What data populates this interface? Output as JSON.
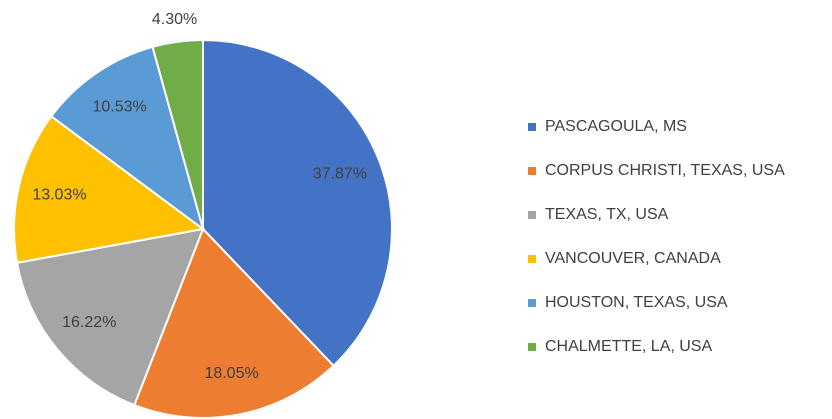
{
  "chart_data": {
    "type": "pie",
    "categories": [
      "PASCAGOULA, MS",
      "CORPUS CHRISTI, TEXAS, USA",
      "TEXAS, TX, USA",
      "VANCOUVER, CANADA",
      "HOUSTON, TEXAS, USA",
      "CHALMETTE, LA, USA"
    ],
    "values": [
      37.87,
      18.05,
      16.22,
      13.03,
      10.53,
      4.3
    ],
    "value_labels": [
      "37.87%",
      "18.05%",
      "16.22%",
      "13.03%",
      "10.53%",
      "4.30%"
    ],
    "colors": [
      "#4472c4",
      "#ed7d31",
      "#a5a5a5",
      "#ffc000",
      "#5b9bd5",
      "#70ad47"
    ],
    "legend": "right"
  }
}
